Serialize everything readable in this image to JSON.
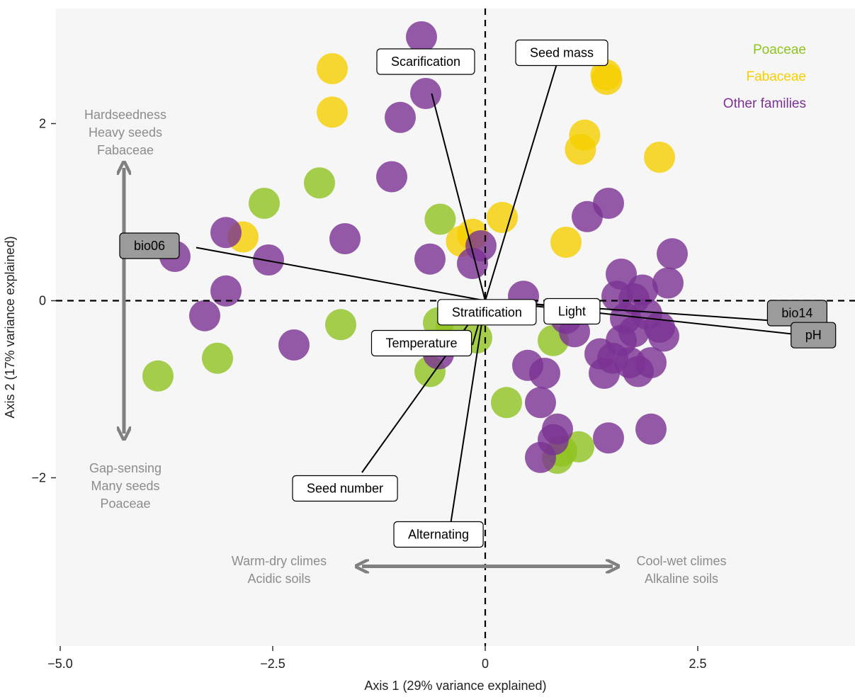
{
  "chart_data": {
    "type": "scatter",
    "title": "",
    "xlabel": "Axis 1 (29% variance explained)",
    "ylabel": "Axis 2 (17% variance explained)",
    "xlim": [
      -5.05,
      4.35
    ],
    "ylim": [
      -3.9,
      3.3
    ],
    "xticks": [
      {
        "v": -5,
        "label": "−5.0"
      },
      {
        "v": -2.5,
        "label": "−2.5"
      },
      {
        "v": 0,
        "label": "0"
      },
      {
        "v": 2.5,
        "label": "2.5"
      }
    ],
    "yticks": [
      {
        "v": 2,
        "label": "2"
      },
      {
        "v": 0,
        "label": "0"
      },
      {
        "v": -2,
        "label": "−2"
      }
    ],
    "grid": false,
    "background": "#f5f6f5",
    "legend_position": "top-right",
    "series": [
      {
        "name": "Poaceae",
        "color": "#8fc31f",
        "points": [
          [
            -3.85,
            -0.85
          ],
          [
            -3.15,
            -0.65
          ],
          [
            -2.6,
            1.1
          ],
          [
            -1.95,
            1.33
          ],
          [
            -1.7,
            -0.27
          ],
          [
            -0.65,
            -0.8
          ],
          [
            -0.53,
            0.92
          ],
          [
            -0.55,
            -0.25
          ],
          [
            -0.4,
            -0.3
          ],
          [
            -0.1,
            -0.42
          ],
          [
            0.25,
            -1.15
          ],
          [
            0.8,
            -0.45
          ],
          [
            0.85,
            -1.78
          ],
          [
            0.9,
            -1.7
          ],
          [
            1.1,
            -1.65
          ]
        ]
      },
      {
        "name": "Fabaceae",
        "color": "#f6cf00",
        "points": [
          [
            -2.85,
            0.72
          ],
          [
            -1.8,
            2.62
          ],
          [
            -1.8,
            2.13
          ],
          [
            -0.28,
            0.67
          ],
          [
            -0.15,
            0.75
          ],
          [
            0.2,
            0.94
          ],
          [
            0.95,
            0.66
          ],
          [
            1.12,
            1.71
          ],
          [
            1.17,
            1.87
          ],
          [
            1.42,
            2.55
          ],
          [
            1.43,
            2.5
          ],
          [
            2.05,
            1.62
          ]
        ]
      },
      {
        "name": "Other families",
        "color": "#7b3294",
        "points": [
          [
            -3.65,
            0.5
          ],
          [
            -3.3,
            -0.17
          ],
          [
            -3.05,
            0.77
          ],
          [
            -3.05,
            0.11
          ],
          [
            -2.55,
            0.46
          ],
          [
            -2.25,
            -0.5
          ],
          [
            -1.65,
            0.7
          ],
          [
            -1.1,
            1.4
          ],
          [
            -1.0,
            2.07
          ],
          [
            -0.75,
            2.98
          ],
          [
            -0.7,
            2.34
          ],
          [
            -0.65,
            0.47
          ],
          [
            -0.55,
            -0.6
          ],
          [
            -0.15,
            0.42
          ],
          [
            -0.05,
            0.62
          ],
          [
            0.45,
            0.05
          ],
          [
            0.5,
            -0.73
          ],
          [
            0.65,
            -1.15
          ],
          [
            0.65,
            -1.77
          ],
          [
            0.7,
            -0.82
          ],
          [
            0.8,
            -1.57
          ],
          [
            0.85,
            -1.45
          ],
          [
            0.95,
            -0.2
          ],
          [
            1.05,
            -0.35
          ],
          [
            1.2,
            0.95
          ],
          [
            1.35,
            -0.6
          ],
          [
            1.4,
            -0.82
          ],
          [
            1.45,
            1.1
          ],
          [
            1.5,
            -0.65
          ],
          [
            1.55,
            0.05
          ],
          [
            1.6,
            -0.45
          ],
          [
            1.6,
            0.3
          ],
          [
            1.65,
            -0.2
          ],
          [
            1.7,
            -0.7
          ],
          [
            1.75,
            0.02
          ],
          [
            1.75,
            -0.35
          ],
          [
            1.8,
            -0.8
          ],
          [
            1.85,
            0.12
          ],
          [
            1.9,
            -0.15
          ],
          [
            1.95,
            -0.7
          ],
          [
            1.95,
            -1.45
          ],
          [
            2.05,
            -0.3
          ],
          [
            2.1,
            -0.4
          ],
          [
            2.15,
            0.2
          ],
          [
            2.2,
            0.53
          ],
          [
            1.45,
            -1.55
          ]
        ]
      }
    ],
    "vectors": [
      {
        "label": "Scarification",
        "end": [
          -0.63,
          2.34
        ],
        "label_at": [
          -0.7,
          2.7
        ],
        "box": "white"
      },
      {
        "label": "Seed mass",
        "end": [
          0.85,
          2.7
        ],
        "label_at": [
          0.9,
          2.8
        ],
        "box": "white"
      },
      {
        "label": "bio06",
        "end": [
          -3.4,
          0.6
        ],
        "label_at": [
          -3.95,
          0.62
        ],
        "box": "grey"
      },
      {
        "label": "bio14",
        "end": [
          3.45,
          -0.23
        ],
        "label_at": [
          3.67,
          -0.14
        ],
        "box": "grey"
      },
      {
        "label": "pH",
        "end": [
          3.65,
          -0.38
        ],
        "label_at": [
          3.86,
          -0.39
        ],
        "box": "grey"
      },
      {
        "label": "Light",
        "end": [
          1.35,
          -0.1
        ],
        "label_at": [
          1.02,
          -0.12
        ],
        "box": "white"
      },
      {
        "label": "Stratification",
        "end": [
          0.1,
          -0.1
        ],
        "label_at": [
          0.02,
          -0.13
        ],
        "box": "white"
      },
      {
        "label": "Temperature",
        "end": [
          -0.15,
          -0.5
        ],
        "label_at": [
          -0.75,
          -0.48
        ],
        "box": "white"
      },
      {
        "label": "Seed number",
        "end": [
          -1.45,
          -1.94
        ],
        "label_at": [
          -1.65,
          -2.12
        ],
        "box": "white"
      },
      {
        "label": "Alternating",
        "end": [
          -0.42,
          -2.6
        ],
        "label_at": [
          -0.55,
          -2.64
        ],
        "box": "white"
      }
    ],
    "annotations": {
      "top_left": [
        "Hardseedness",
        "Heavy seeds",
        "Fabaceae"
      ],
      "bottom_left": [
        "Gap-sensing",
        "Many seeds",
        "Poaceae"
      ],
      "left_axis": [
        "Warm-dry climes",
        "Acidic soils"
      ],
      "right_axis": [
        "Cool-wet climes",
        "Alkaline soils"
      ]
    }
  }
}
